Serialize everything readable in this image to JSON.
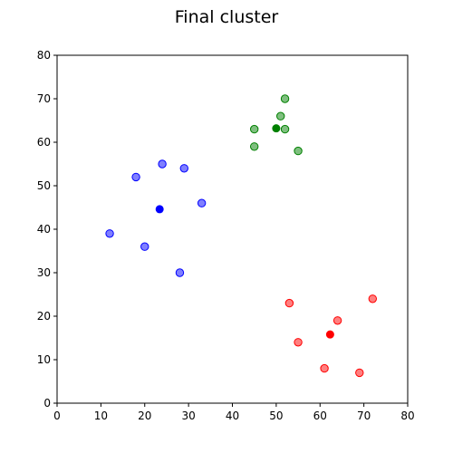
{
  "chart_data": {
    "type": "scatter",
    "title": "Final cluster",
    "xlabel": "",
    "ylabel": "",
    "xlim": [
      0,
      80
    ],
    "ylim": [
      0,
      80
    ],
    "xticks": [
      0,
      10,
      20,
      30,
      40,
      50,
      60,
      70,
      80
    ],
    "yticks": [
      0,
      10,
      20,
      30,
      40,
      50,
      60,
      70,
      80
    ],
    "grid": false,
    "series": [
      {
        "color": "#0000ff",
        "points": [
          [
            12,
            39
          ],
          [
            18,
            52
          ],
          [
            20,
            36
          ],
          [
            24,
            55
          ],
          [
            28,
            30
          ],
          [
            29,
            54
          ],
          [
            33,
            46
          ]
        ],
        "centroid": [
          23.4,
          44.6
        ]
      },
      {
        "color": "#008000",
        "points": [
          [
            45,
            63
          ],
          [
            45,
            59
          ],
          [
            51,
            66
          ],
          [
            52,
            70
          ],
          [
            52,
            63
          ],
          [
            55,
            58
          ]
        ],
        "centroid": [
          50.0,
          63.2
        ]
      },
      {
        "color": "#ff0000",
        "points": [
          [
            53,
            23
          ],
          [
            55,
            14
          ],
          [
            61,
            8
          ],
          [
            64,
            19
          ],
          [
            69,
            7
          ],
          [
            72,
            24
          ]
        ],
        "centroid": [
          62.3,
          15.8
        ]
      }
    ]
  }
}
